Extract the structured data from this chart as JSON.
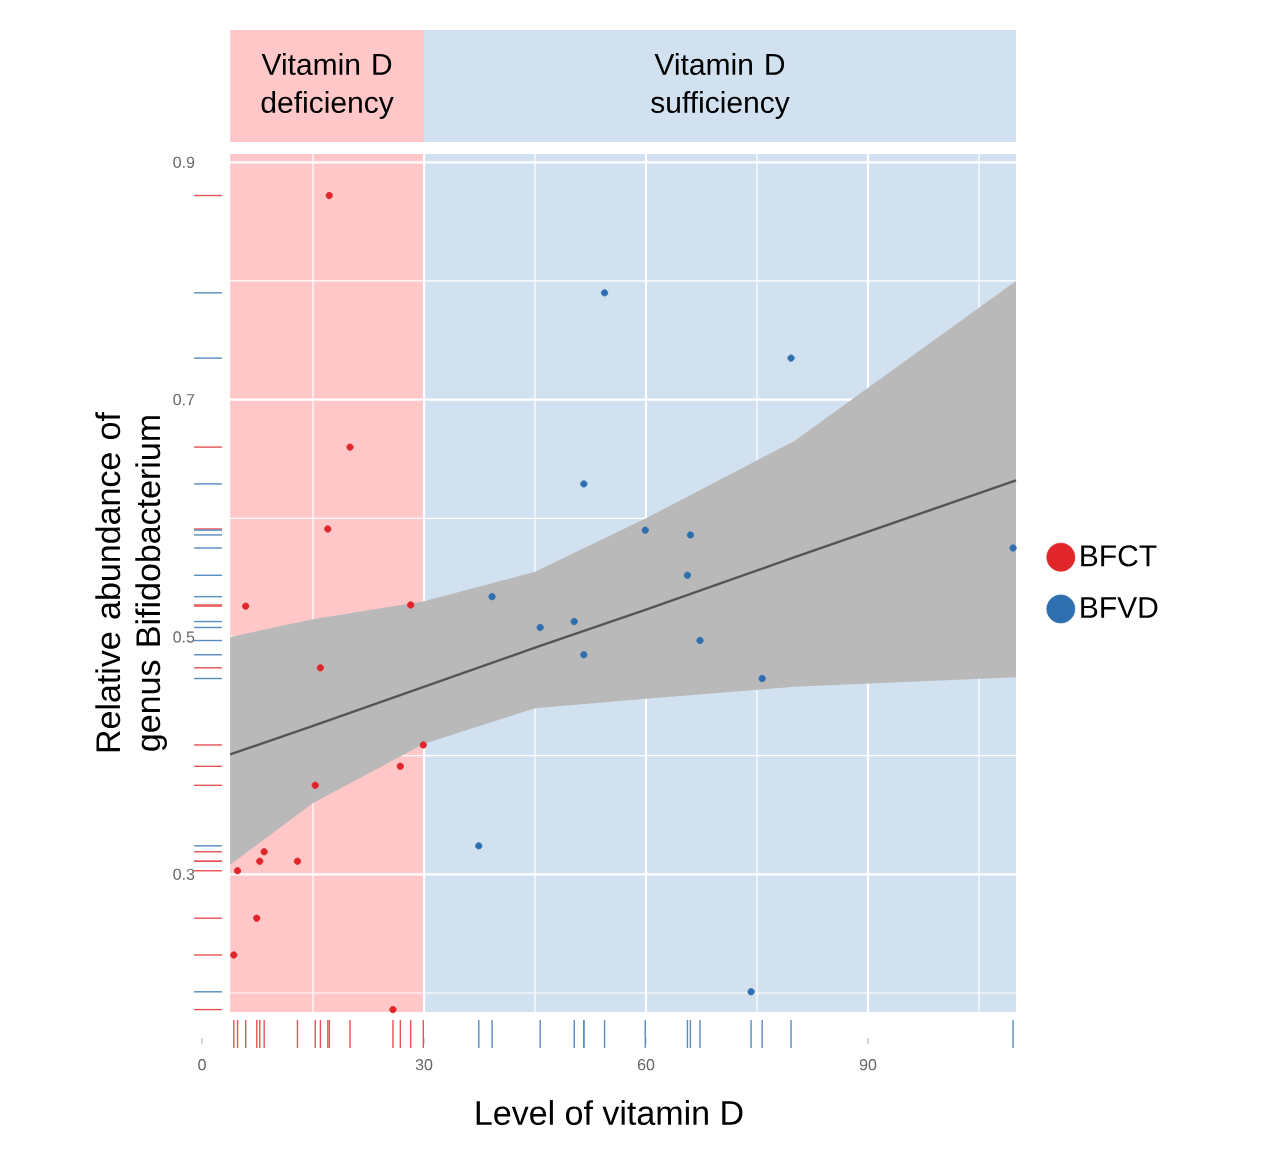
{
  "chart_data": {
    "type": "scatter",
    "xlabel": "Level of vitamin D",
    "ylabel": "Relative abundance of genus Bifidobacterium",
    "xlim": [
      0,
      110
    ],
    "ylim": [
      0.184,
      0.907
    ],
    "xticks": [
      0,
      30,
      60,
      90
    ],
    "yticks": [
      0.3,
      0.5,
      0.7,
      0.9
    ],
    "grid": true,
    "legend": "right",
    "marker": "circle",
    "bands": [
      {
        "axis": "x",
        "from": 3.8,
        "to": 30,
        "label": "Vitamin D deficiency",
        "color": "#ffc7c7"
      },
      {
        "axis": "x",
        "from": 30,
        "to": 110,
        "label": "Vitamin D sufficiency",
        "color": "#d2e1f0"
      }
    ],
    "series": [
      {
        "name": "BFCT",
        "color": "#e0262a",
        "x": [
          17.2,
          20.0,
          17.0,
          5.9,
          28.2,
          16.0,
          29.9,
          26.8,
          15.3,
          8.4,
          7.8,
          12.9,
          4.8,
          7.4,
          4.3,
          25.8
        ],
        "values": [
          0.872,
          0.66,
          0.591,
          0.526,
          0.527,
          0.474,
          0.409,
          0.391,
          0.375,
          0.319,
          0.311,
          0.311,
          0.303,
          0.263,
          0.232,
          0.186
        ]
      },
      {
        "name": "BFVD",
        "color": "#2e6fb0",
        "x": [
          54.4,
          79.6,
          51.6,
          59.9,
          66.0,
          109.6,
          65.6,
          39.2,
          45.7,
          50.3,
          51.6,
          67.3,
          75.7,
          37.4,
          74.2
        ],
        "values": [
          0.79,
          0.735,
          0.629,
          0.59,
          0.586,
          0.575,
          0.552,
          0.534,
          0.508,
          0.513,
          0.485,
          0.497,
          0.465,
          0.324,
          0.201
        ]
      },
      {
        "type": "line",
        "marker": "none",
        "color": "#555555",
        "x": [
          3.8,
          15,
          30,
          45,
          60,
          80,
          110
        ],
        "values": [
          0.401,
          0.425,
          0.458,
          0.491,
          0.523,
          0.567,
          0.632
        ],
        "lower": [
          0.308,
          0.36,
          0.41,
          0.44,
          0.448,
          0.458,
          0.466
        ],
        "upper": [
          0.5,
          0.515,
          0.53,
          0.555,
          0.6,
          0.665,
          0.8
        ]
      }
    ]
  }
}
